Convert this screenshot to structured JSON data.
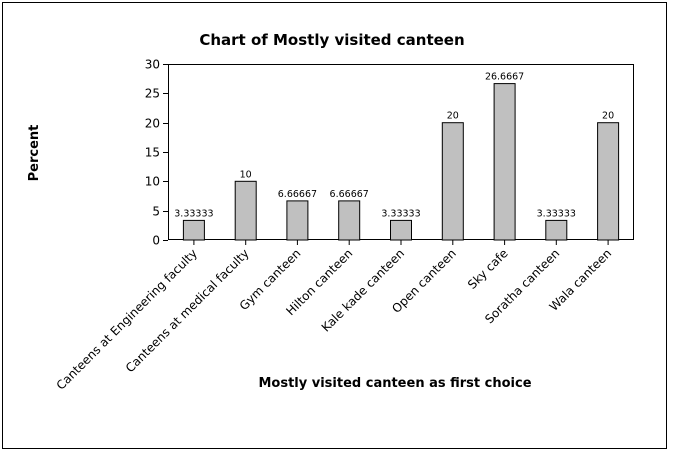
{
  "chart_data": {
    "type": "bar",
    "title": "Chart of Mostly visited canteen",
    "xlabel": "Mostly visited canteen as first choice",
    "ylabel": "Percent",
    "categories": [
      "Canteens at Engineering faculty",
      "Canteens at medical faculty",
      "Gym canteen",
      "Hilton canteen",
      "Kale kade canteen",
      "Open canteen",
      "Sky cafe",
      "Soratha canteen",
      "Wala canteen"
    ],
    "values": [
      3.33333,
      10,
      6.66667,
      6.66667,
      3.33333,
      20,
      26.6667,
      3.33333,
      20
    ],
    "data_labels": [
      "3.33333",
      "10",
      "6.66667",
      "6.66667",
      "3.33333",
      "20",
      "26.6667",
      "3.33333",
      "20"
    ],
    "ylim": [
      0,
      30
    ],
    "yticks": [
      0,
      5,
      10,
      15,
      20,
      25,
      30
    ],
    "grid": false,
    "legend": "none",
    "colors": {
      "bar_fill": "#c0c0c0",
      "bar_stroke": "#000000",
      "frame_stroke": "#000000"
    }
  }
}
